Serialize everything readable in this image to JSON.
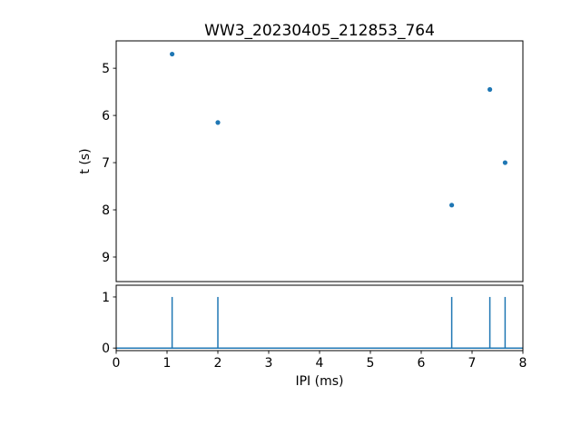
{
  "title": "WW3_20230405_212853_764",
  "colors": {
    "marker": "#1f77b4",
    "axis": "#000000",
    "background": "#ffffff"
  },
  "chart_data": [
    {
      "type": "scatter",
      "title": "WW3_20230405_212853_764",
      "xlabel": "",
      "ylabel": "t (s)",
      "x": [
        1.1,
        2.0,
        6.6,
        7.35,
        7.65
      ],
      "y": [
        4.7,
        6.15,
        7.9,
        5.45,
        7.0
      ],
      "xlim": [
        0,
        8
      ],
      "ylim": [
        4.42,
        9.52
      ],
      "y_inverted": true,
      "yticks": [
        5,
        6,
        7,
        8,
        9
      ],
      "grid": false,
      "marker_color": "#1f77b4"
    },
    {
      "type": "stem",
      "xlabel": "IPI (ms)",
      "ylabel": "",
      "x": [
        1.1,
        2.0,
        6.6,
        7.35,
        7.65
      ],
      "values": [
        1,
        1,
        1,
        1,
        1
      ],
      "xlim": [
        0,
        8
      ],
      "ylim": [
        -0.05,
        1.23
      ],
      "xticks": [
        0,
        1,
        2,
        3,
        4,
        5,
        6,
        7,
        8
      ],
      "yticks": [
        0,
        1
      ],
      "grid": false,
      "line_color": "#1f77b4",
      "baseline": 0
    }
  ]
}
